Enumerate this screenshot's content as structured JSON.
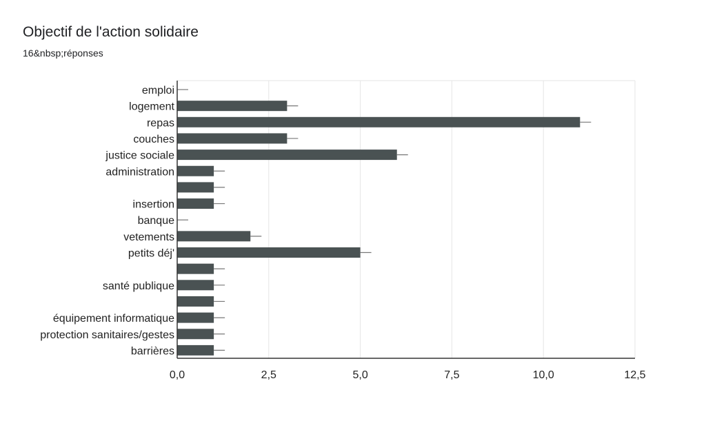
{
  "header": {
    "title": "Objectif de l'action solidaire",
    "subtitle": "16&nbsp;réponses"
  },
  "colors": {
    "bar": "#4a5253",
    "grid": "#e5e5e5",
    "axis": "#333333",
    "error_bar": "#777777"
  },
  "chart_data": {
    "type": "bar",
    "orientation": "horizontal",
    "categories": [
      "emploi",
      "logement",
      "repas",
      "couches",
      "justice sociale",
      "administration",
      "",
      "insertion",
      "banque",
      "vetements",
      "petits déj'",
      "",
      "santé publique",
      "",
      "équipement informatique",
      "protection sanitaires/gestes",
      "barrières"
    ],
    "values": [
      0,
      3,
      11,
      3,
      6,
      1,
      1,
      1,
      0,
      2,
      5,
      1,
      1,
      1,
      1,
      1,
      1
    ],
    "error_bars": true,
    "xlim": [
      0,
      12.5
    ],
    "x_ticks": [
      "0,0",
      "2,5",
      "5,0",
      "7,5",
      "10,0",
      "12,5"
    ],
    "x_tick_values": [
      0,
      2.5,
      5,
      7.5,
      10,
      12.5
    ],
    "grid": true
  }
}
